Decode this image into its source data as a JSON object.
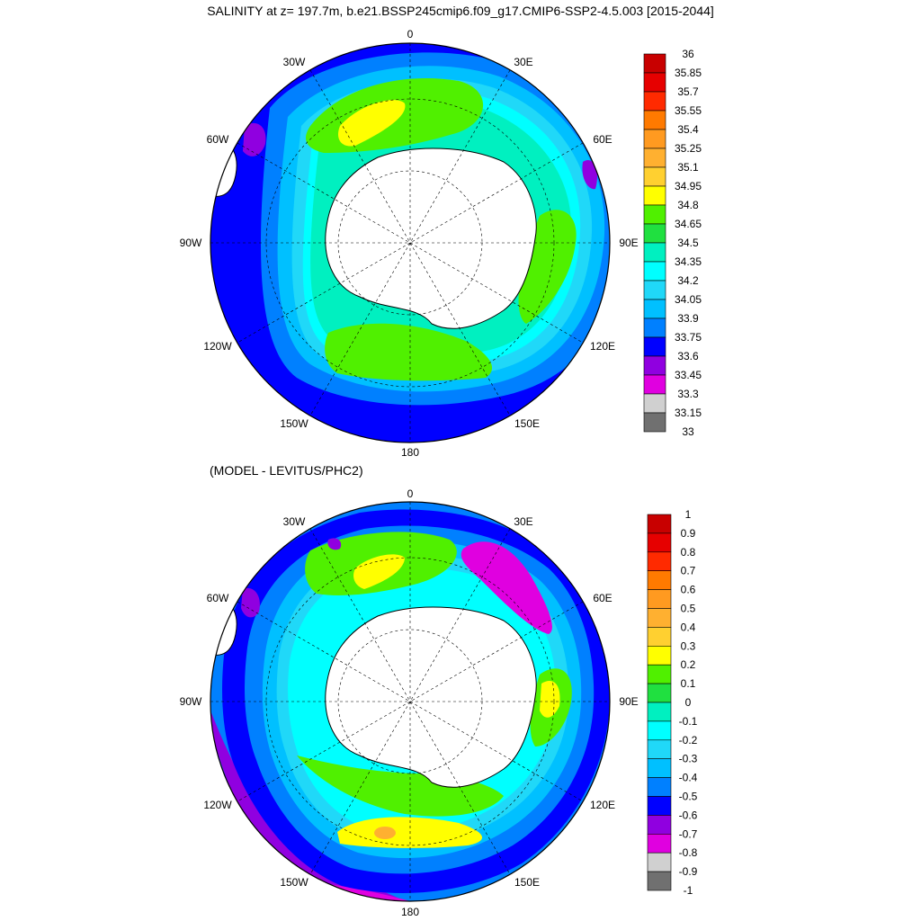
{
  "title": "SALINITY at z= 197.7m, b.e21.BSSP245cmip6.f09_g17.CMIP6-SSP2-4.5.003 [2015-2044]",
  "subtitle": "(MODEL - LEVITUS/PHC2)",
  "longitude_labels": [
    "0",
    "30E",
    "60E",
    "90E",
    "120E",
    "150E",
    "180",
    "150W",
    "120W",
    "90W",
    "60W",
    "30W"
  ],
  "colors": {
    "ocean_low": "#0000e0",
    "land": "#ffffff",
    "coast": "#000000",
    "grid": "#000000"
  },
  "top_colorbar": {
    "labels": [
      "36",
      "35.85",
      "35.7",
      "35.55",
      "35.4",
      "35.25",
      "35.1",
      "34.95",
      "34.8",
      "34.65",
      "34.5",
      "34.35",
      "34.2",
      "34.05",
      "33.9",
      "33.75",
      "33.6",
      "33.45",
      "33.3",
      "33.15",
      "33"
    ],
    "colors": [
      "#c80000",
      "#e60000",
      "#ff2a00",
      "#ff7a00",
      "#ff9a20",
      "#ffb030",
      "#ffd030",
      "#ffff00",
      "#50f000",
      "#20e040",
      "#00f0c0",
      "#00ffff",
      "#20d8f8",
      "#00c0ff",
      "#0080ff",
      "#0000ff",
      "#9000e0",
      "#e000e0",
      "#d0d0d0",
      "#707070"
    ]
  },
  "bottom_colorbar": {
    "labels": [
      "1",
      "0.9",
      "0.8",
      "0.7",
      "0.6",
      "0.5",
      "0.4",
      "0.3",
      "0.2",
      "0.1",
      "0",
      "-0.1",
      "-0.2",
      "-0.3",
      "-0.4",
      "-0.5",
      "-0.6",
      "-0.7",
      "-0.8",
      "-0.9",
      "-1"
    ],
    "colors": [
      "#c80000",
      "#e60000",
      "#ff2a00",
      "#ff7a00",
      "#ff9a20",
      "#ffb030",
      "#ffd030",
      "#ffff00",
      "#50f000",
      "#20e040",
      "#00f0c0",
      "#00ffff",
      "#20d8f8",
      "#00c0ff",
      "#0080ff",
      "#0000ff",
      "#9000e0",
      "#e000e0",
      "#d0d0d0",
      "#707070"
    ]
  }
}
